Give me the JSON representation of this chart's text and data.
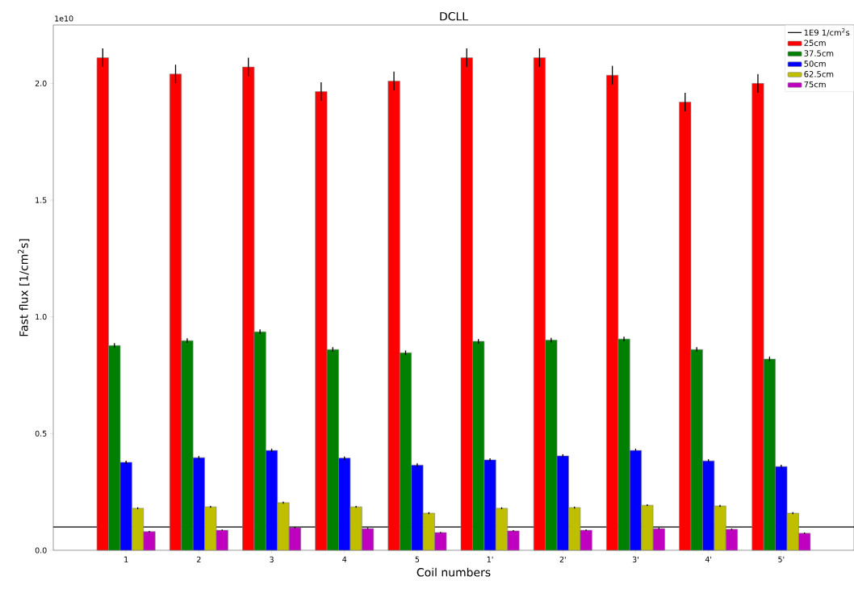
{
  "chart_data": {
    "type": "bar",
    "title": "DCLL",
    "xlabel": "Coil numbers",
    "ylabel": "Fast flux [1/cm$^{2}$s]",
    "categories": [
      "1",
      "2",
      "3",
      "4",
      "5",
      "1'",
      "2'",
      "3'",
      "4'",
      "5'"
    ],
    "series": [
      {
        "name": "25cm",
        "color": "#ff0000",
        "values": [
          2.11,
          2.04,
          2.07,
          1.965,
          2.01,
          2.11,
          2.11,
          2.035,
          1.92,
          2.0
        ],
        "errors": [
          0.04,
          0.04,
          0.04,
          0.04,
          0.04,
          0.04,
          0.04,
          0.04,
          0.04,
          0.04
        ]
      },
      {
        "name": "37.5cm",
        "color": "#008000",
        "values": [
          0.877,
          0.898,
          0.936,
          0.86,
          0.846,
          0.895,
          0.9,
          0.905,
          0.86,
          0.819
        ],
        "errors": [
          0.01,
          0.01,
          0.01,
          0.01,
          0.01,
          0.01,
          0.01,
          0.01,
          0.01,
          0.01
        ]
      },
      {
        "name": "50cm",
        "color": "#0000ff",
        "values": [
          0.377,
          0.397,
          0.428,
          0.395,
          0.365,
          0.387,
          0.404,
          0.428,
          0.383,
          0.359
        ],
        "errors": [
          0.007,
          0.007,
          0.007,
          0.007,
          0.007,
          0.007,
          0.007,
          0.007,
          0.007,
          0.007
        ]
      },
      {
        "name": "62.5cm",
        "color": "#bfbf00",
        "values": [
          0.18,
          0.186,
          0.204,
          0.186,
          0.159,
          0.18,
          0.183,
          0.193,
          0.19,
          0.159
        ],
        "errors": [
          0.004,
          0.004,
          0.004,
          0.004,
          0.004,
          0.004,
          0.004,
          0.004,
          0.004,
          0.004
        ]
      },
      {
        "name": "75cm",
        "color": "#bf00bf",
        "values": [
          0.08,
          0.086,
          0.097,
          0.093,
          0.076,
          0.083,
          0.086,
          0.093,
          0.09,
          0.073
        ],
        "errors": [
          0.003,
          0.003,
          0.003,
          0.003,
          0.003,
          0.003,
          0.003,
          0.003,
          0.003,
          0.003
        ]
      }
    ],
    "ylim": [
      0,
      2.25
    ],
    "yticks": [
      {
        "value": 0,
        "label": "0.0"
      },
      {
        "value": 0.5,
        "label": "0.5"
      },
      {
        "value": 1.0,
        "label": "1.0"
      },
      {
        "value": 1.5,
        "label": "1.5"
      },
      {
        "value": 2.0,
        "label": "2.0"
      }
    ],
    "ref_lines": [
      {
        "axis": "y",
        "value": 0.1,
        "label": "1E9 1/cm$^{2}$s",
        "color": "#000000"
      }
    ],
    "annotations": [
      "1e10"
    ],
    "legend": "top right",
    "grid": false
  }
}
